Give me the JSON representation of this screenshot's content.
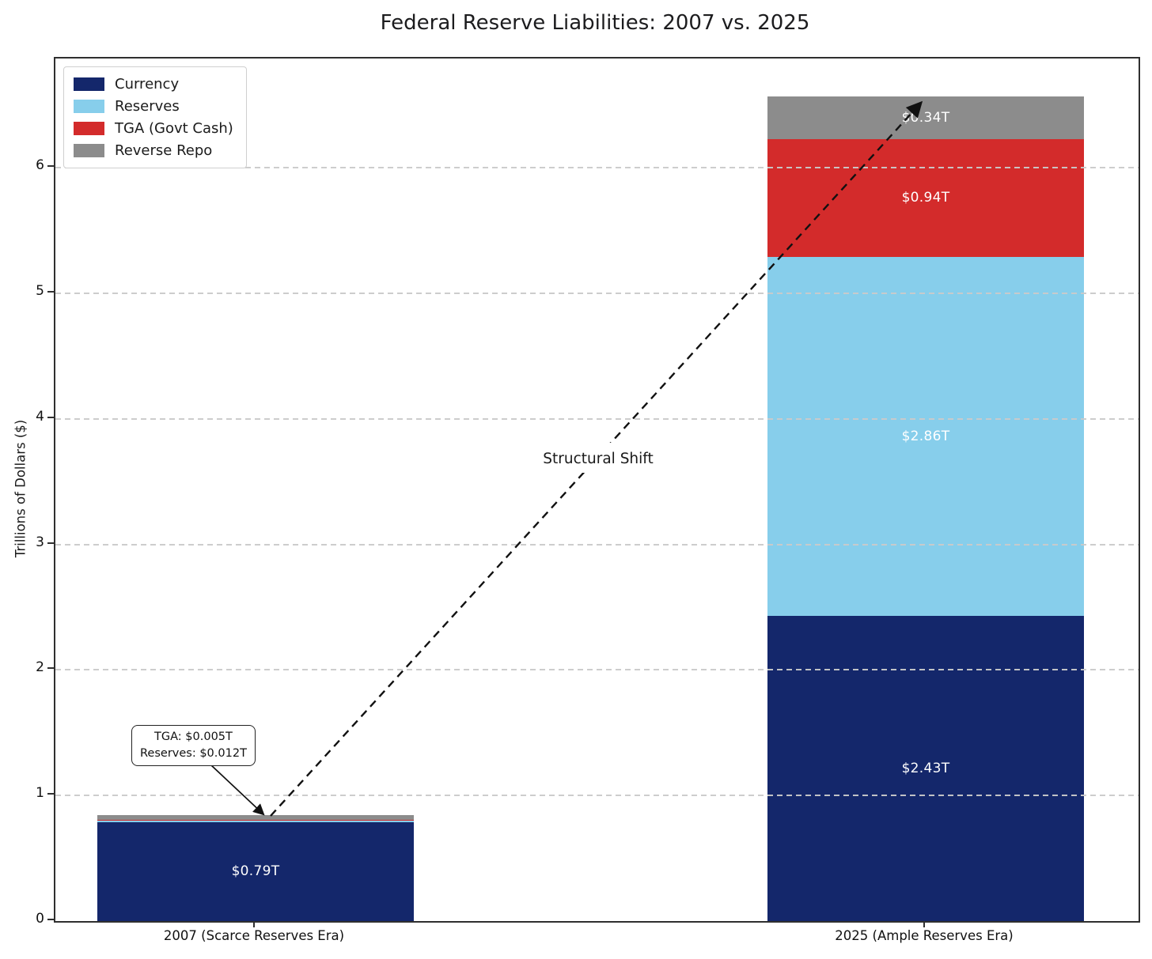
{
  "title": "Federal Reserve Liabilities: 2007 vs. 2025",
  "chart_data": {
    "type": "bar",
    "stacked": true,
    "title": "Federal Reserve Liabilities: 2007 vs. 2025",
    "xlabel": "",
    "ylabel": "Trillions of Dollars ($)",
    "ylim": [
      0,
      6.87
    ],
    "yticks": [
      0,
      1,
      2,
      3,
      4,
      5,
      6
    ],
    "grid": "horizontal-dashed",
    "legend_position": "upper-left",
    "categories": [
      "2007 (Scarce Reserves Era)",
      "2025 (Ample Reserves Era)"
    ],
    "series": [
      {
        "name": "Currency",
        "color": "#14276b",
        "values": [
          0.79,
          2.43
        ],
        "labels": [
          "$0.79T",
          "$2.43T"
        ]
      },
      {
        "name": "Reserves",
        "color": "#87ceeb",
        "values": [
          0.012,
          2.86
        ],
        "labels": [
          null,
          "$2.86T"
        ]
      },
      {
        "name": "TGA (Govt Cash)",
        "color": "#d32b2b",
        "values": [
          0.005,
          0.94
        ],
        "labels": [
          null,
          "$0.94T"
        ]
      },
      {
        "name": "Reverse Repo",
        "color": "#8c8c8c",
        "values": [
          0.04,
          0.34
        ],
        "labels": [
          null,
          "$0.34T"
        ]
      }
    ],
    "annotations": {
      "callout_line1": "TGA: $0.005T",
      "callout_line2": "Reserves: $0.012T",
      "shift_label": "Structural Shift"
    }
  }
}
